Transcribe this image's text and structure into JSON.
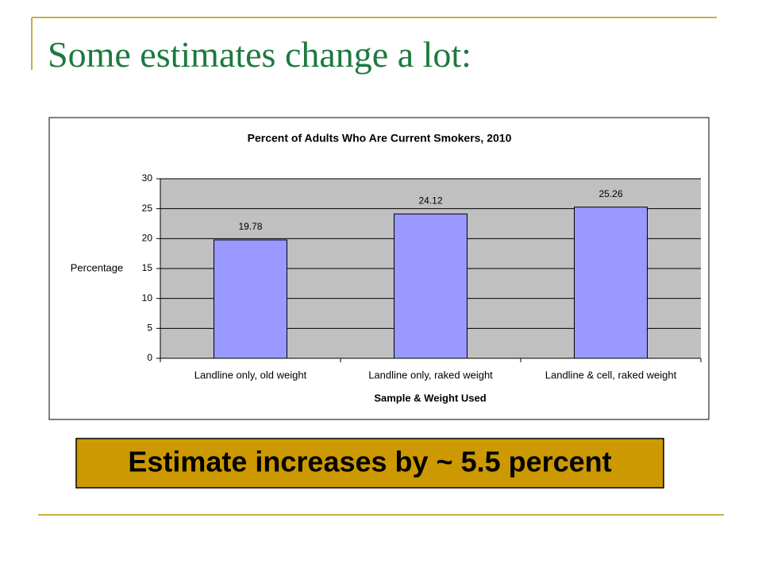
{
  "slide": {
    "title": "Some estimates change a lot:",
    "callout": "Estimate increases by ~ 5.5 percent"
  },
  "chart_data": {
    "type": "bar",
    "title": "Percent of Adults Who Are Current Smokers, 2010",
    "x_label": "Sample & Weight Used",
    "y_label": "Percentage",
    "categories": [
      "Landline only, old weight",
      "Landline only, raked weight",
      "Landline & cell, raked weight"
    ],
    "values": [
      19.78,
      24.12,
      25.26
    ],
    "color": "#9999ff",
    "plot_background": "#c0c0c0",
    "ylim": [
      0,
      30
    ],
    "yticks": [
      0,
      5,
      10,
      15,
      20,
      25,
      30
    ],
    "grid": true
  }
}
